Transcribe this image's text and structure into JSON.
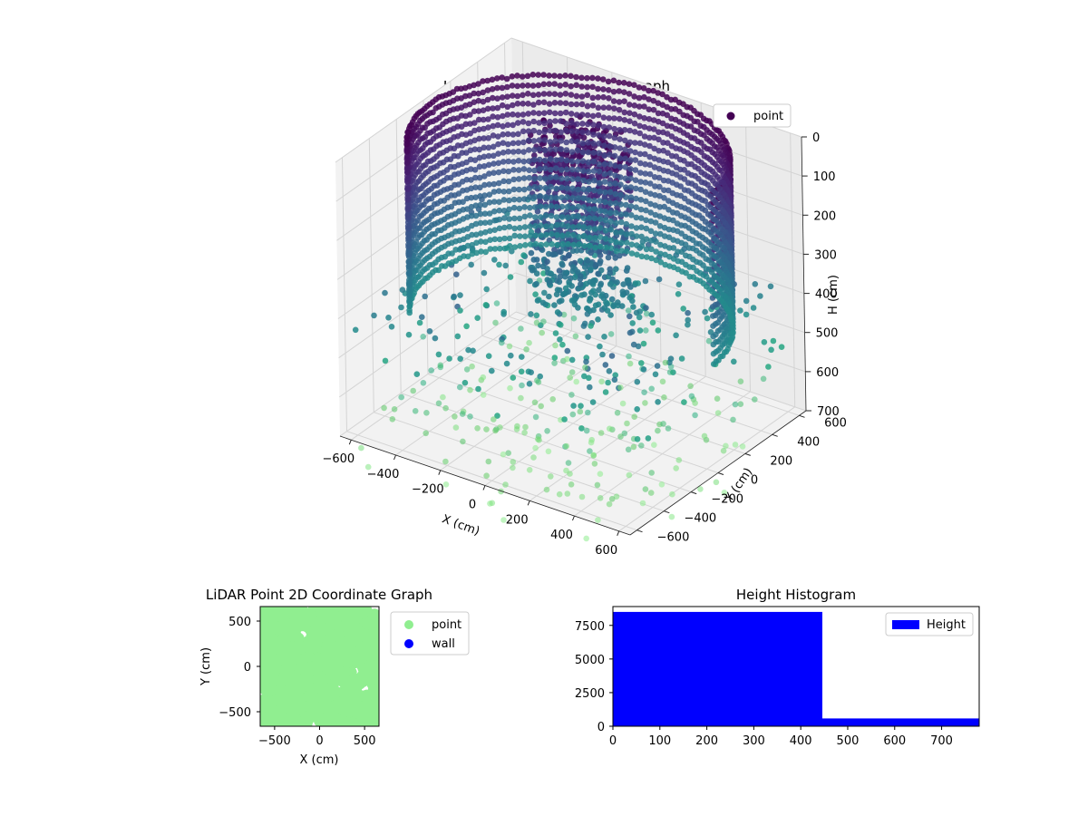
{
  "chart_data": [
    {
      "type": "scatter",
      "title": "LiDAR Point 3D Coordinate Graph",
      "xlabel": "X (cm)",
      "ylabel": "Y (cm)",
      "zlabel": "H (cm)",
      "x_ticks": [
        "−600",
        "−400",
        "−200",
        "0",
        "200",
        "400",
        "600"
      ],
      "y_ticks": [
        "−600",
        "−400",
        "−200",
        "0",
        "200",
        "400",
        "600"
      ],
      "z_ticks": [
        "0",
        "100",
        "200",
        "300",
        "400",
        "500",
        "600",
        "700"
      ],
      "xlim": [
        -650,
        650
      ],
      "ylim": [
        -650,
        650
      ],
      "zlim": [
        0,
        700
      ],
      "z_inverted": true,
      "colormap": "viridis",
      "legend": {
        "placement": "top-right",
        "entries": [
          {
            "label": "point",
            "color": "#440154"
          }
        ]
      },
      "description_of_data": "dense ring of points at radius ~620 cm from 0 to ~450 cm height, central cluster, scattered points down to ~780 cm",
      "series": [
        {
          "name": "point"
        }
      ]
    },
    {
      "type": "scatter",
      "title": "LiDAR Point 2D Coordinate Graph",
      "xlabel": "X (cm)",
      "ylabel": "Y (cm)",
      "x_ticks": [
        "−500",
        "0",
        "500"
      ],
      "y_ticks": [
        "−500",
        "0",
        "500"
      ],
      "xlim": [
        -660,
        660
      ],
      "ylim": [
        -660,
        660
      ],
      "legend": {
        "placement": "outside-right",
        "entries": [
          {
            "label": "point",
            "color": "#90ee90"
          },
          {
            "label": "wall",
            "color": "#0000ff"
          }
        ]
      },
      "series": [
        {
          "name": "point",
          "color": "#90ee90"
        },
        {
          "name": "wall",
          "color": "#0000ff"
        }
      ]
    },
    {
      "type": "bar",
      "title": "Height Histogram",
      "x_ticks": [
        "0",
        "100",
        "200",
        "300",
        "400",
        "500",
        "600",
        "700"
      ],
      "y_ticks": [
        "0",
        "2500",
        "5000",
        "7500"
      ],
      "xlim": [
        0,
        780
      ],
      "ylim": [
        0,
        8900
      ],
      "bins": [
        {
          "start": 0,
          "end": 446,
          "count": 8500
        },
        {
          "start": 446,
          "end": 780,
          "count": 580
        }
      ],
      "color": "#0000ff",
      "legend": {
        "placement": "top-right",
        "entries": [
          {
            "label": "Height",
            "color": "#0000ff"
          }
        ]
      },
      "series": [
        {
          "name": "Height",
          "color": "#0000ff"
        }
      ]
    }
  ]
}
